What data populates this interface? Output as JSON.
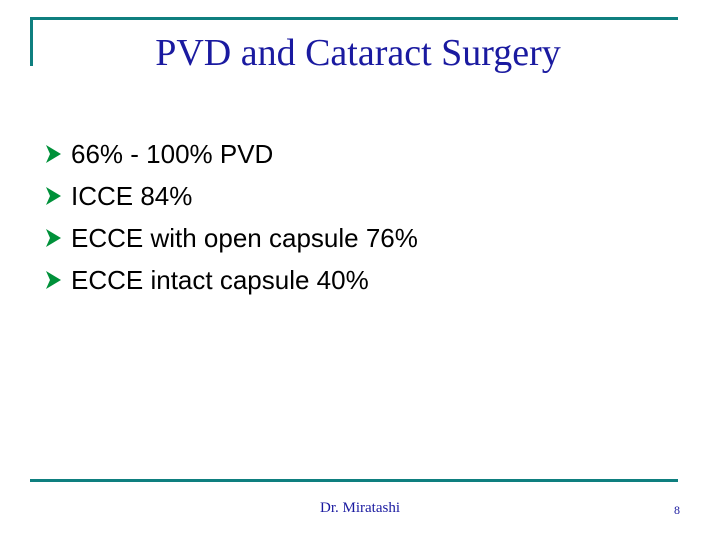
{
  "slide": {
    "title": "PVD and Cataract Surgery",
    "bullets": [
      "66% - 100% PVD",
      "ICCE 84%",
      "ECCE with open capsule 76%",
      "ECCE intact capsule 40%"
    ],
    "bullet_icon": "arrow-bullet-icon"
  },
  "footer": {
    "author": "Dr. Miratashi",
    "page_number": "8"
  },
  "colors": {
    "accent": "#0e7f7f",
    "title": "#1a1aa0",
    "bullet_arrow": "#00913a"
  }
}
